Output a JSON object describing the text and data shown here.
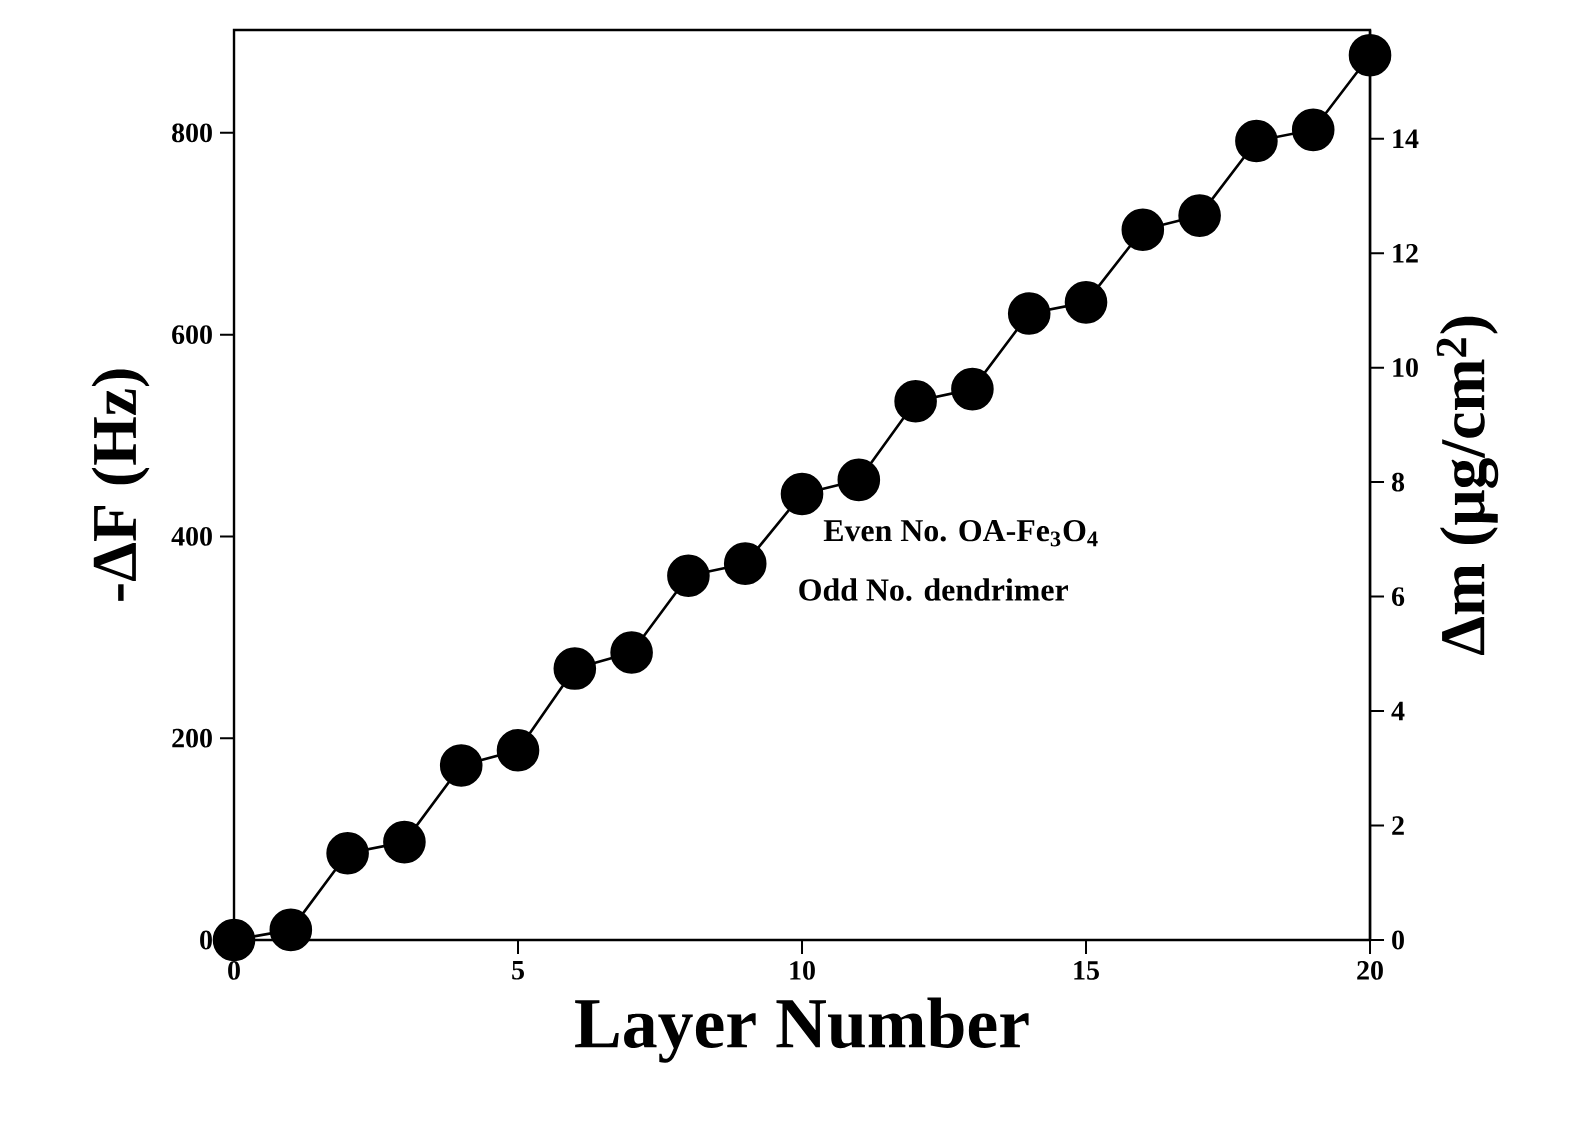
{
  "chart_data": {
    "type": "line",
    "xlabel": "Layer Number",
    "ylabel": "-ΔF (Hz)",
    "y2label": "Δm (μg/cm$^{2}$)",
    "x": [
      0,
      1,
      2,
      3,
      4,
      5,
      6,
      7,
      8,
      9,
      10,
      11,
      12,
      13,
      14,
      15,
      16,
      17,
      18,
      19,
      20
    ],
    "series": [
      {
        "color": "#000000",
        "values": [
          0,
          10,
          86,
          97,
          173,
          188,
          269,
          285,
          361,
          373,
          442,
          456,
          534,
          546,
          621,
          632,
          704,
          718,
          792,
          803,
          877
        ]
      }
    ],
    "xlim": [
      0,
      20
    ],
    "xticks": [
      0,
      5,
      10,
      15,
      20
    ],
    "ylim": [
      0,
      902
    ],
    "yticks": [
      0,
      200,
      400,
      600,
      800
    ],
    "y2lim": [
      0,
      15.9
    ],
    "y2ticks": [
      0,
      2,
      4,
      6,
      8,
      10,
      12,
      14
    ],
    "marker": "circle",
    "line_style": "solid",
    "grid": false,
    "annotations": [
      "Even No. OA-Fe$_{3}$O$_{4}$",
      "Odd No. dendrimer"
    ]
  }
}
